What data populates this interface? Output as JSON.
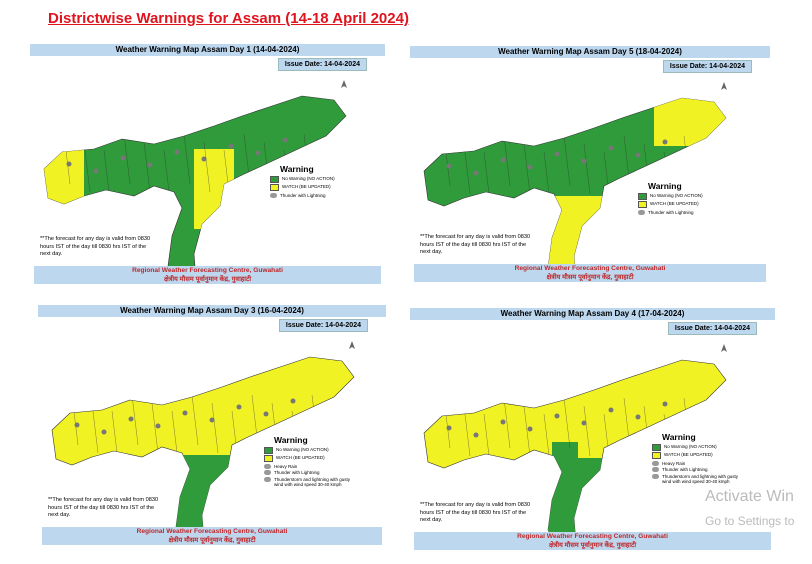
{
  "title": "Districtwise Warnings for Assam (14-18 April 2024)",
  "panels": [
    {
      "header": "Weather Warning Map Assam Day 1 (14-04-2024)",
      "issue_date": "Issue Date: 14-04-2024",
      "legend_title": "Warning",
      "legend": [
        "No Warning (NO ACTION)",
        "WATCH (BE UPDATED)",
        "Thunder with Lightning"
      ],
      "note": "**The forecast for any day is valid from 0830 hours IST of the day till 0830 hrs IST of the next day.",
      "footer_en": "Regional Weather Forecasting Centre, Guwahati",
      "footer_hi": "क्षेत्रीय मौसम पूर्वानुमान केंद्र, गुवाहाटी"
    },
    {
      "header": "Weather Warning Map Assam Day 5 (18-04-2024)",
      "issue_date": "Issue Date: 14-04-2024",
      "legend_title": "Warning",
      "legend": [
        "No Warning (NO ACTION)",
        "WATCH (BE UPDATED)",
        "Thunder with Lightning"
      ],
      "note": "**The forecast for any day is valid from 0830 hours IST of the day till 0830 hrs IST of the next day.",
      "footer_en": "Regional Weather Forecasting Centre, Guwahati",
      "footer_hi": "क्षेत्रीय मौसम पूर्वानुमान केंद्र, गुवाहाटी"
    },
    {
      "header": "Weather Warning Map Assam Day 3 (16-04-2024)",
      "issue_date": "Issue Date: 14-04-2024",
      "legend_title": "Warning",
      "legend": [
        "No Warning (NO ACTION)",
        "WATCH (BE UPDATED)",
        "Heavy Rain",
        "Thunder with Lightning",
        "Thunderstorm and lightning with gusty wind with wind speed 30-40 kmph"
      ],
      "note": "**The forecast for any day is valid from 0830 hours IST of the day till 0830 hrs IST of the next day.",
      "footer_en": "Regional Weather Forecasting Centre, Guwahati",
      "footer_hi": "क्षेत्रीय मौसम पूर्वानुमान केंद्र, गुवाहाटी"
    },
    {
      "header": "Weather Warning Map Assam Day 4 (17-04-2024)",
      "issue_date": "Issue Date: 14-04-2024",
      "legend_title": "Warning",
      "legend": [
        "No Warning (NO ACTION)",
        "WATCH (BE UPDATED)",
        "Heavy Rain",
        "Thunder with Lightning",
        "Thunderstorm and lightning with gusty wind with wind speed 30-40 kmph"
      ],
      "note": "**The forecast for any day is valid from 0830 hours IST of the day till 0830 hrs IST of the next day.",
      "footer_en": "Regional Weather Forecasting Centre, Guwahati",
      "footer_hi": "क्षेत्रीय मौसम पूर्वानुमान केंद्र, गुवाहाटी"
    }
  ],
  "watermark": [
    "Activate Win",
    "Go to Settings to"
  ]
}
